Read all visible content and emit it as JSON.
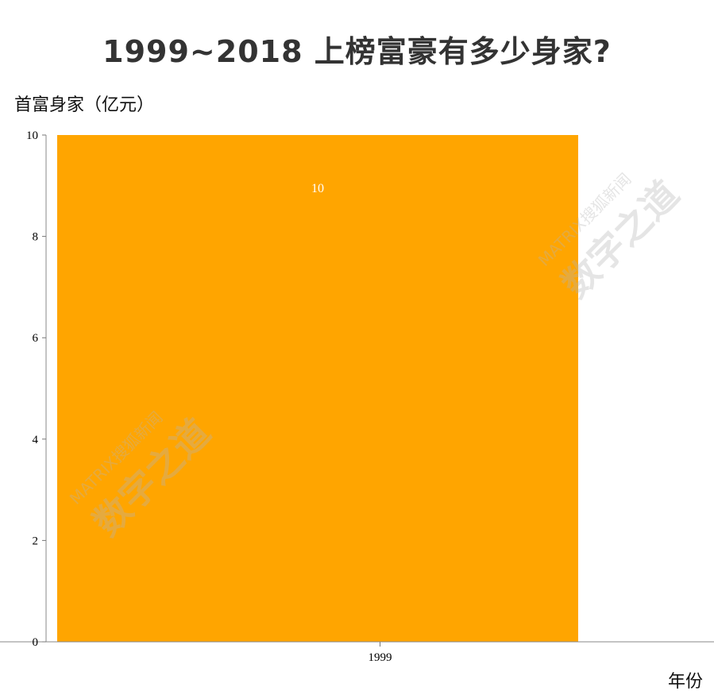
{
  "chart_data": {
    "type": "bar",
    "title": "1999~2018 上榜富豪有多少身家?",
    "ylabel": "首富身家（亿元）",
    "xlabel": "年份",
    "categories": [
      "1999"
    ],
    "values": [
      10
    ],
    "data_labels": [
      "10"
    ],
    "ylim": [
      0,
      10
    ],
    "yticks": [
      "0",
      "2",
      "4",
      "6",
      "8",
      "10"
    ],
    "grid": false,
    "bar_color": "#FFA500",
    "label_color": "#ffffff"
  },
  "watermark": {
    "line1": "MATRIX搜狐新闻",
    "line2": "数字之道"
  }
}
